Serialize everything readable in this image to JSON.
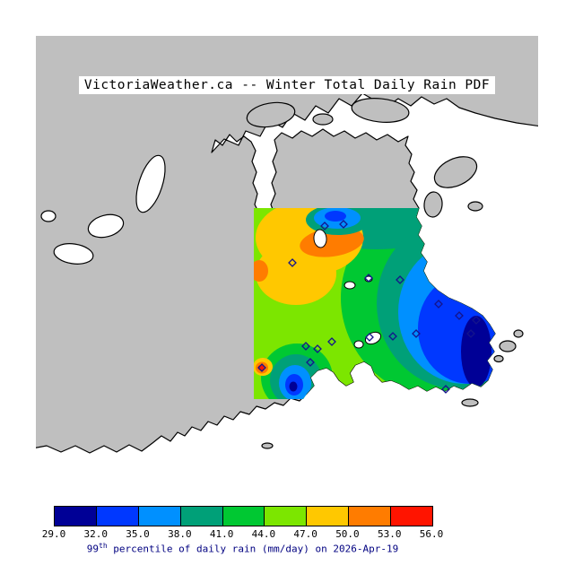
{
  "page": {
    "background": "#FFFFFF"
  },
  "title": "VictoriaWeather.ca -- Winter Total Daily Rain PDF",
  "map": {
    "land_color": "#BFBFBF",
    "water_color": "#FFFFFF",
    "coast_color": "#000000",
    "station_marker": "open-diamond",
    "stations": [
      [
        362,
        252
      ],
      [
        383,
        250
      ],
      [
        326,
        293
      ],
      [
        411,
        310
      ],
      [
        446,
        312
      ],
      [
        489,
        339
      ],
      [
        512,
        352
      ],
      [
        531,
        357
      ],
      [
        341,
        386
      ],
      [
        354,
        389
      ],
      [
        370,
        381
      ],
      [
        412,
        376
      ],
      [
        438,
        375
      ],
      [
        464,
        372
      ],
      [
        292,
        410
      ],
      [
        346,
        404
      ],
      [
        497,
        434
      ],
      [
        525,
        372
      ]
    ]
  },
  "colorbar": {
    "ticks": [
      "29.0",
      "32.0",
      "35.0",
      "38.0",
      "41.0",
      "44.0",
      "47.0",
      "50.0",
      "53.0",
      "56.0"
    ],
    "colors": [
      "#000096",
      "#0038FF",
      "#0090FF",
      "#00A078",
      "#00C832",
      "#7CE600",
      "#FFC800",
      "#FF7C00",
      "#FF1400"
    ]
  },
  "caption": {
    "base": "99",
    "superscript": "th",
    "rest": " percentile of daily rain (mm/day) on 2026-Apr-19",
    "color": "#000080"
  },
  "chart_data": {
    "type": "heatmap",
    "title": "VictoriaWeather.ca -- Winter Total Daily Rain PDF",
    "variable": "99th percentile of daily rain",
    "units": "mm/day",
    "season": "Winter",
    "date": "2026-Apr-19",
    "value_ticks": [
      29.0,
      32.0,
      35.0,
      38.0,
      41.0,
      44.0,
      47.0,
      50.0,
      53.0,
      56.0
    ],
    "value_range": [
      29.0,
      56.0
    ],
    "palette": [
      "#000096",
      "#0038FF",
      "#0090FF",
      "#00A078",
      "#00C832",
      "#7CE600",
      "#FFC800",
      "#FF7C00",
      "#FF1400"
    ],
    "legend_position": "bottom",
    "observed_pattern": {
      "maximum": "yellow-orange maximum ~47-53 mm/day in the northwest-central interior, small red spot ~53-56 at west edge",
      "minimum": "dark blue minimum ~29-32 mm/day over southeast Victoria/Oak Bay area, small blue pocket ~29-35 at south-central coast",
      "background_field": "mostly 44-47 mm/day (light green) west, decreasing eastward through 41-44 and 38-41 bands"
    }
  }
}
